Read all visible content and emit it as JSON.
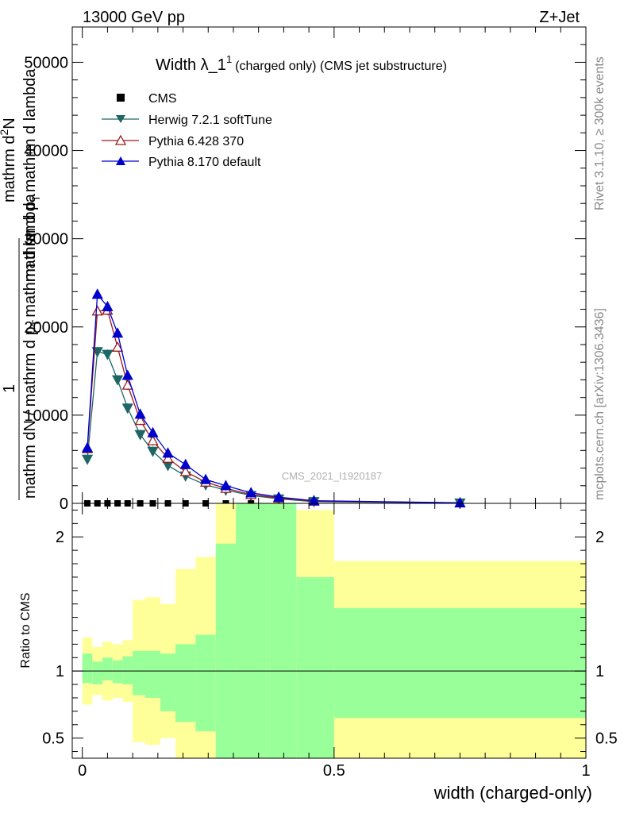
{
  "header": {
    "energy": "13000 GeV pp",
    "process": "Z+Jet"
  },
  "chart_data": [
    {
      "type": "line",
      "title": "Width λ_1",
      "title_sup": "1",
      "subtitle": "(charged only) (CMS jet substructure)",
      "ylabel_lines": [
        "1",
        "mathrm dN / mathrm d p_T mathrm d lambda",
        "mathrm d²N",
        "mathrm d p_T mathrm d lambda"
      ],
      "ylabel_one": "1",
      "ylabel_denom": "mathrm dN / mathrm d p",
      "ylabel_denom_sub": "T",
      "ylabel_denom2": "mathrm d lambda",
      "ylabel_num": "mathrm d",
      "ylabel_num_sup": "2",
      "ylabel_num2": "N",
      "ylabel_num_denom": "mathrm d p",
      "ylabel_num_denom_sub": "T",
      "ylabel_num_denom2": "mathrm d lambda",
      "ylim": [
        0,
        54000
      ],
      "yticks": [
        "0",
        "10000",
        "20000",
        "30000",
        "40000",
        "50000"
      ],
      "ytick_values": [
        0,
        10000,
        20000,
        30000,
        40000,
        50000
      ],
      "watermark": "CMS_2021_I1920187",
      "legend": [
        {
          "name": "CMS",
          "color": "#000000",
          "marker": "square"
        },
        {
          "name": "Herwig 7.2.1 softTune",
          "color": "#1e6666",
          "marker": "triangle-down"
        },
        {
          "name": "Pythia 6.428 370",
          "color": "#9b1a1a",
          "marker": "triangle-open"
        },
        {
          "name": "Pythia 8.170 default",
          "color": "#0000cc",
          "marker": "triangle-up"
        }
      ],
      "series": [
        {
          "name": "CMS",
          "x": [
            0.01,
            0.03,
            0.05,
            0.07,
            0.09,
            0.115,
            0.14,
            0.17,
            0.205,
            0.245,
            0.285,
            0.335
          ],
          "values": [
            0,
            0,
            0,
            0,
            0,
            0,
            0,
            0,
            0,
            0,
            0,
            0
          ]
        },
        {
          "name": "Herwig 7.2.1 softTune",
          "x": [
            0.01,
            0.03,
            0.05,
            0.07,
            0.09,
            0.115,
            0.14,
            0.17,
            0.205,
            0.245,
            0.285,
            0.335,
            0.39,
            0.46,
            0.75
          ],
          "values": [
            5000,
            17200,
            16900,
            14000,
            10800,
            7800,
            5900,
            4300,
            3100,
            2100,
            1500,
            900,
            500,
            200,
            40
          ]
        },
        {
          "name": "Pythia 6.428 370",
          "x": [
            0.01,
            0.03,
            0.05,
            0.07,
            0.09,
            0.115,
            0.14,
            0.17,
            0.205,
            0.245,
            0.285,
            0.335,
            0.39,
            0.46,
            0.75
          ],
          "values": [
            6200,
            21800,
            21900,
            17700,
            13400,
            9400,
            7100,
            5100,
            3600,
            2400,
            1700,
            1000,
            600,
            250,
            50
          ]
        },
        {
          "name": "Pythia 8.170 default",
          "x": [
            0.01,
            0.03,
            0.05,
            0.07,
            0.09,
            0.115,
            0.14,
            0.17,
            0.205,
            0.245,
            0.285,
            0.335,
            0.39,
            0.46,
            0.75
          ],
          "values": [
            6300,
            23700,
            22300,
            19300,
            14500,
            10100,
            8000,
            5700,
            4400,
            2700,
            2000,
            1200,
            700,
            300,
            60
          ]
        }
      ]
    },
    {
      "type": "area",
      "ylabel": "Ratio to CMS",
      "xlabel": "width (charged-only)",
      "xlim": [
        -0.02,
        1.0
      ],
      "ylim": [
        0.35,
        2.25
      ],
      "xticks": [
        "0",
        "0.5",
        "1"
      ],
      "xtick_values": [
        0,
        0.5,
        1
      ],
      "yticks": [
        "0.5",
        "1",
        "2"
      ],
      "ytick_values": [
        0.5,
        1,
        2
      ],
      "bin_edges": [
        0,
        0.02,
        0.04,
        0.06,
        0.08,
        0.1,
        0.125,
        0.155,
        0.185,
        0.225,
        0.265,
        0.305,
        0.365,
        0.425,
        0.5,
        1.0
      ],
      "green_band": {
        "upper": [
          1.13,
          1.07,
          1.1,
          1.08,
          1.11,
          1.15,
          1.15,
          1.13,
          1.2,
          1.27,
          1.95,
          2.25,
          2.25,
          1.7,
          1.47
        ],
        "lower": [
          0.91,
          0.9,
          0.93,
          0.91,
          0.9,
          0.82,
          0.8,
          0.7,
          0.62,
          0.55,
          0.3,
          0.3,
          0.3,
          0.3,
          0.65
        ]
      },
      "yellow_band": {
        "upper": [
          1.25,
          1.18,
          1.22,
          1.2,
          1.23,
          1.53,
          1.55,
          1.5,
          1.76,
          1.85,
          2.25,
          2.25,
          2.25,
          2.2,
          1.82
        ]
      },
      "reference_line": 1
    }
  ],
  "side_labels": {
    "rivet": "Rivet 3.1.10, ≥ 300k events",
    "mcplots": "mcplots.cern.ch [arXiv:1306.3436]"
  }
}
